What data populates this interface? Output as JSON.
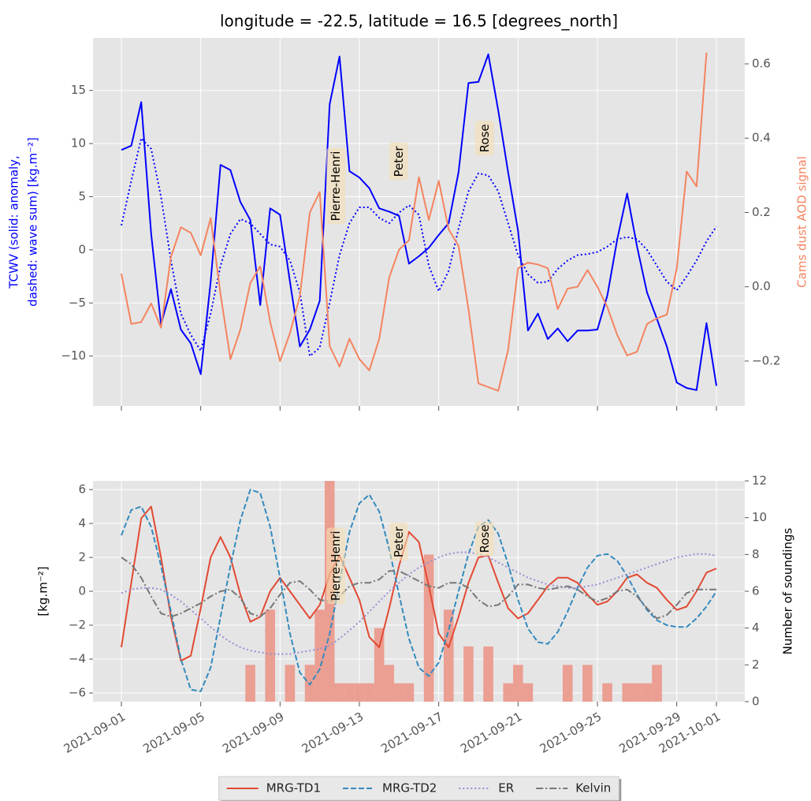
{
  "chart_data": [
    {
      "type": "line",
      "title": "longitude = -22.5, latitude = 16.5 [degrees_north]",
      "ylabel": [
        "TCWV (solid: anomaly,",
        "dashed: wave sum) [kg.m⁻²]"
      ],
      "ylabel_color": "blue",
      "y2label": "Cams dust AOD signal",
      "y2label_color": "#f4845f",
      "grid": true,
      "xticklabels": false,
      "xlim": [
        "2021-08-30T13:40",
        "2021-10-02T10:20"
      ],
      "xticks": [
        "2021-09-01",
        "2021-09-05",
        "2021-09-09",
        "2021-09-13",
        "2021-09-17",
        "2021-09-21",
        "2021-09-25",
        "2021-09-29",
        "2021-10-01"
      ],
      "ylim": [
        -14.7,
        19.95
      ],
      "yticks": [
        {
          "value": -10,
          "label": "−10"
        },
        {
          "value": -5,
          "label": "−5"
        },
        0,
        5,
        10,
        15
      ],
      "y2lim": [
        -0.321,
        0.67
      ],
      "y2ticks": [
        {
          "value": -0.2,
          "label": "−0.2"
        },
        {
          "value": 0,
          "label": "0.0"
        },
        0.2,
        0.4,
        0.6
      ],
      "x": [
        "2021-09-01T00:00",
        "2021-09-01T12:00",
        "2021-09-02T00:00",
        "2021-09-02T12:00",
        "2021-09-03T00:00",
        "2021-09-03T12:00",
        "2021-09-04T00:00",
        "2021-09-04T12:00",
        "2021-09-05T00:00",
        "2021-09-05T12:00",
        "2021-09-06T00:00",
        "2021-09-06T12:00",
        "2021-09-07T00:00",
        "2021-09-07T12:00",
        "2021-09-08T00:00",
        "2021-09-08T12:00",
        "2021-09-09T00:00",
        "2021-09-09T12:00",
        "2021-09-10T00:00",
        "2021-09-10T12:00",
        "2021-09-11T00:00",
        "2021-09-11T12:00",
        "2021-09-12T00:00",
        "2021-09-12T12:00",
        "2021-09-13T00:00",
        "2021-09-13T12:00",
        "2021-09-14T00:00",
        "2021-09-14T12:00",
        "2021-09-15T00:00",
        "2021-09-15T12:00",
        "2021-09-16T00:00",
        "2021-09-16T12:00",
        "2021-09-17T00:00",
        "2021-09-17T12:00",
        "2021-09-18T00:00",
        "2021-09-18T12:00",
        "2021-09-19T00:00",
        "2021-09-19T12:00",
        "2021-09-20T00:00",
        "2021-09-20T12:00",
        "2021-09-21T00:00",
        "2021-09-21T12:00",
        "2021-09-22T00:00",
        "2021-09-22T12:00",
        "2021-09-23T00:00",
        "2021-09-23T12:00",
        "2021-09-24T00:00",
        "2021-09-24T12:00",
        "2021-09-25T00:00",
        "2021-09-25T12:00",
        "2021-09-26T00:00",
        "2021-09-26T12:00",
        "2021-09-27T00:00",
        "2021-09-27T12:00",
        "2021-09-28T00:00",
        "2021-09-28T12:00",
        "2021-09-29T00:00",
        "2021-09-29T12:00",
        "2021-09-30T00:00",
        "2021-09-30T12:00",
        "2021-10-01T00:00"
      ],
      "series": [
        {
          "type": "line",
          "style": "solid",
          "color": "blue",
          "axis": "y",
          "values": [
            9.4,
            9.8,
            13.9,
            1.5,
            -7,
            -3.7,
            -7.5,
            -8.8,
            -11.7,
            -3,
            8,
            7.5,
            4.5,
            2.8,
            -5.2,
            3.9,
            3.3,
            -3,
            -9.1,
            -7.5,
            -4.8,
            13.7,
            18.2,
            7.4,
            6.8,
            5.8,
            3.9,
            3.6,
            3.2,
            -1.3,
            -0.6,
            0.2,
            1.4,
            2.5,
            7.3,
            15.7,
            15.8,
            18.4,
            13.1,
            7.3,
            1.8,
            -7.6,
            -6,
            -8.4,
            -7.4,
            -8.6,
            -7.6,
            -7.6,
            -7.5,
            -4.3,
            1,
            5.3,
            0.3,
            -4,
            -6.5,
            -9.1,
            -12.5,
            -13,
            -13.2,
            -6.9,
            -12.8
          ]
        },
        {
          "type": "line",
          "style": "dotted",
          "color": "blue",
          "axis": "y",
          "values": [
            2.3,
            6.5,
            10.5,
            9.5,
            5,
            -1,
            -6,
            -8,
            -9.5,
            -6,
            -1.5,
            1.5,
            2.9,
            2.5,
            1.5,
            0.5,
            0.3,
            -1,
            -4,
            -10,
            -9.2,
            -5,
            -0.5,
            2.5,
            4,
            4,
            3,
            2.5,
            3.5,
            4.2,
            3.3,
            -1.5,
            -3.9,
            -2,
            2,
            5.5,
            7.2,
            7,
            5.5,
            2.5,
            -0.5,
            -2.3,
            -3.1,
            -3,
            -1.8,
            -1,
            -0.5,
            -0.4,
            -0.2,
            0.3,
            1,
            1.2,
            1,
            0,
            -1.5,
            -3,
            -3.8,
            -2.5,
            -1,
            0.8,
            2.2
          ]
        },
        {
          "type": "line",
          "style": "solid",
          "color": "#f4845f",
          "axis": "y2",
          "values": [
            0.035,
            -0.1,
            -0.095,
            -0.045,
            -0.11,
            0.08,
            0.16,
            0.145,
            0.085,
            0.185,
            -0.02,
            -0.195,
            -0.115,
            0.01,
            0.055,
            -0.095,
            -0.2,
            -0.125,
            -0.025,
            0.2,
            0.255,
            -0.16,
            -0.215,
            -0.14,
            -0.195,
            -0.225,
            -0.14,
            0.025,
            0.1,
            0.125,
            0.295,
            0.18,
            0.285,
            0.155,
            0.11,
            -0.06,
            -0.26,
            -0.27,
            -0.28,
            -0.17,
            0.05,
            0.065,
            0.06,
            0.05,
            -0.06,
            -0.005,
            0,
            0.045,
            0,
            -0.055,
            -0.13,
            -0.185,
            -0.175,
            -0.1,
            -0.085,
            -0.075,
            0.05,
            0.31,
            0.27,
            0.63,
            null
          ]
        }
      ],
      "annotations": [
        {
          "text": "Pierre-Henri",
          "x": "2021-09-11T20:00",
          "y": 6
        },
        {
          "text": "Peter",
          "x": "2021-09-15T00:00",
          "y": 8.3
        },
        {
          "text": "Rose",
          "x": "2021-09-19T08:00",
          "y": 10.5
        }
      ]
    },
    {
      "type": "line",
      "ylabel": "[kg.m⁻²]",
      "y2label": "Number of soundings",
      "grid": true,
      "legend": "lower center",
      "xlim": [
        "2021-08-30T13:40",
        "2021-10-02T10:20"
      ],
      "xticks": [
        "2021-09-01",
        "2021-09-05",
        "2021-09-09",
        "2021-09-13",
        "2021-09-17",
        "2021-09-21",
        "2021-09-25",
        "2021-09-29",
        "2021-10-01"
      ],
      "ylim": [
        -6.51,
        6.51
      ],
      "yticks": [
        {
          "value": -6,
          "label": "−6"
        },
        {
          "value": -4,
          "label": "−4"
        },
        {
          "value": -2,
          "label": "−2"
        },
        0,
        2,
        4,
        6
      ],
      "y2lim": [
        0,
        12
      ],
      "y2ticks": [
        0,
        2,
        4,
        6,
        8,
        10,
        12
      ],
      "x": [
        "2021-09-01T00:00",
        "2021-09-01T12:00",
        "2021-09-02T00:00",
        "2021-09-02T12:00",
        "2021-09-03T00:00",
        "2021-09-03T12:00",
        "2021-09-04T00:00",
        "2021-09-04T12:00",
        "2021-09-05T00:00",
        "2021-09-05T12:00",
        "2021-09-06T00:00",
        "2021-09-06T12:00",
        "2021-09-07T00:00",
        "2021-09-07T12:00",
        "2021-09-08T00:00",
        "2021-09-08T12:00",
        "2021-09-09T00:00",
        "2021-09-09T12:00",
        "2021-09-10T00:00",
        "2021-09-10T12:00",
        "2021-09-11T00:00",
        "2021-09-11T12:00",
        "2021-09-12T00:00",
        "2021-09-12T12:00",
        "2021-09-13T00:00",
        "2021-09-13T12:00",
        "2021-09-14T00:00",
        "2021-09-14T12:00",
        "2021-09-15T00:00",
        "2021-09-15T12:00",
        "2021-09-16T00:00",
        "2021-09-16T12:00",
        "2021-09-17T00:00",
        "2021-09-17T12:00",
        "2021-09-18T00:00",
        "2021-09-18T12:00",
        "2021-09-19T00:00",
        "2021-09-19T12:00",
        "2021-09-20T00:00",
        "2021-09-20T12:00",
        "2021-09-21T00:00",
        "2021-09-21T12:00",
        "2021-09-22T00:00",
        "2021-09-22T12:00",
        "2021-09-23T00:00",
        "2021-09-23T12:00",
        "2021-09-24T00:00",
        "2021-09-24T12:00",
        "2021-09-25T00:00",
        "2021-09-25T12:00",
        "2021-09-26T00:00",
        "2021-09-26T12:00",
        "2021-09-27T00:00",
        "2021-09-27T12:00",
        "2021-09-28T00:00",
        "2021-09-28T12:00",
        "2021-09-29T00:00",
        "2021-09-29T12:00",
        "2021-09-30T00:00",
        "2021-09-30T12:00",
        "2021-10-01T00:00"
      ],
      "series": [
        {
          "type": "bar",
          "color": "#eb9e92",
          "axis": "y2",
          "values": [
            0,
            0,
            0,
            0,
            0,
            0,
            0,
            0,
            0,
            0,
            0,
            0,
            0,
            2,
            0,
            5,
            0,
            2,
            0,
            2,
            5,
            12,
            1,
            1,
            1,
            1,
            4,
            2,
            1,
            1,
            0,
            8,
            0,
            5,
            0,
            3,
            0,
            3,
            0,
            1,
            2,
            1,
            0,
            0,
            0,
            2,
            0,
            2,
            0,
            1,
            0,
            1,
            1,
            1,
            2,
            0,
            0,
            0,
            0,
            0,
            0
          ]
        },
        {
          "type": "line",
          "name": "MRG-TD1",
          "style": "solid",
          "color": "#e24a33",
          "axis": "y",
          "values": [
            -3.3,
            0.5,
            4.3,
            5,
            2,
            -1.5,
            -4.1,
            -3.8,
            -1,
            2,
            3.2,
            2,
            -0.2,
            -1.8,
            -1.5,
            0,
            0.8,
            0,
            -0.8,
            -1.6,
            -0.8,
            1,
            2.1,
            0.8,
            -0.5,
            -2.7,
            -3.3,
            -1,
            1.5,
            3.5,
            2.9,
            0.3,
            -2.5,
            -3.3,
            -1.5,
            0.5,
            2,
            2.1,
            0.5,
            -1,
            -1.6,
            -1.3,
            -0.5,
            0.3,
            0.8,
            0.8,
            0.5,
            -0.2,
            -0.8,
            -0.6,
            0,
            0.8,
            1,
            0.5,
            0.2,
            -0.5,
            -1.1,
            -0.9,
            0,
            1.1,
            1.35
          ]
        },
        {
          "type": "line",
          "name": "MRG-TD2",
          "style": "dashed",
          "color": "#348abd",
          "axis": "y",
          "values": [
            3.3,
            4.8,
            5,
            3.8,
            1.5,
            -1.2,
            -4,
            -5.8,
            -5.9,
            -4.5,
            -1.5,
            1.5,
            4.2,
            6,
            5.8,
            3.8,
            0.8,
            -2.5,
            -4.8,
            -5.5,
            -4.6,
            -2.5,
            0.5,
            3.5,
            5.2,
            5.7,
            4.7,
            2.5,
            -0.2,
            -2.8,
            -4.5,
            -5,
            -4.2,
            -2.3,
            0,
            2.2,
            3.8,
            4.2,
            3.4,
            1.6,
            -0.5,
            -2.2,
            -3,
            -3.1,
            -2.4,
            -1.2,
            0.2,
            1.4,
            2.1,
            2.2,
            1.8,
            0.9,
            -0.2,
            -1.1,
            -1.7,
            -2,
            -2.1,
            -2.1,
            -1.6,
            -0.9,
            0
          ]
        },
        {
          "type": "line",
          "name": "ER",
          "style": "dotted",
          "color": "#988ed5",
          "axis": "y",
          "values": [
            -0.1,
            0.1,
            0.2,
            0.2,
            0.1,
            -0.2,
            -0.6,
            -1.1,
            -1.6,
            -2.1,
            -2.6,
            -3,
            -3.3,
            -3.5,
            -3.6,
            -3.7,
            -3.7,
            -3.7,
            -3.6,
            -3.5,
            -3.4,
            -3.2,
            -2.8,
            -2.3,
            -1.8,
            -1.2,
            -0.6,
            0,
            0.5,
            1,
            1.4,
            1.7,
            2,
            2.2,
            2.3,
            2.3,
            2.2,
            2,
            1.7,
            1.4,
            1.1,
            0.8,
            0.6,
            0.4,
            0.3,
            0.2,
            0.2,
            0.3,
            0.4,
            0.6,
            0.8,
            1,
            1.2,
            1.4,
            1.6,
            1.8,
            2,
            2.1,
            2.2,
            2.2,
            2.1
          ]
        },
        {
          "type": "line",
          "name": "Kelvin",
          "style": "dashdot",
          "color": "#777777",
          "axis": "y",
          "values": [
            2,
            1.6,
            0.8,
            -0.3,
            -1.3,
            -1.5,
            -1.3,
            -1,
            -0.7,
            -0.3,
            0,
            0.1,
            -0.4,
            -1.3,
            -1.5,
            -1,
            -0.2,
            0.5,
            0.6,
            0.1,
            -0.5,
            -0.6,
            -0.3,
            0.3,
            0.5,
            0.5,
            0.7,
            1.2,
            1.2,
            0.9,
            0.6,
            0.3,
            0.2,
            0.5,
            0.5,
            0.2,
            -0.5,
            -0.9,
            -0.8,
            -0.3,
            0.4,
            0.4,
            0.2,
            0.1,
            0.2,
            0.3,
            0.1,
            -0.3,
            -0.6,
            -0.4,
            0,
            0.1,
            -0.3,
            -1,
            -1.6,
            -1.4,
            -0.8,
            -0.1,
            0.1,
            0.1,
            0.1
          ]
        }
      ],
      "annotations": [
        {
          "text": "Pierre-Henri",
          "x": "2021-09-11T20:00",
          "y": 1.5
        },
        {
          "text": "Peter",
          "x": "2021-09-15T00:00",
          "y": 2.9
        },
        {
          "text": "Rose",
          "x": "2021-09-19T08:00",
          "y": 3.1
        }
      ]
    }
  ]
}
